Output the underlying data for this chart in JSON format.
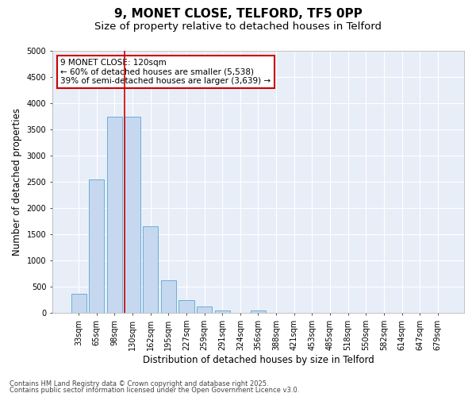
{
  "title1": "9, MONET CLOSE, TELFORD, TF5 0PP",
  "title2": "Size of property relative to detached houses in Telford",
  "xlabel": "Distribution of detached houses by size in Telford",
  "ylabel": "Number of detached properties",
  "categories": [
    "33sqm",
    "65sqm",
    "98sqm",
    "130sqm",
    "162sqm",
    "195sqm",
    "227sqm",
    "259sqm",
    "291sqm",
    "324sqm",
    "356sqm",
    "388sqm",
    "421sqm",
    "453sqm",
    "485sqm",
    "518sqm",
    "550sqm",
    "582sqm",
    "614sqm",
    "647sqm",
    "679sqm"
  ],
  "values": [
    370,
    2550,
    3750,
    3750,
    1650,
    625,
    250,
    120,
    50,
    0,
    50,
    0,
    0,
    0,
    0,
    0,
    0,
    0,
    0,
    0,
    0
  ],
  "bar_color": "#c5d8f0",
  "bar_edge_color": "#6aaed6",
  "vline_color": "#cc0000",
  "annotation_text": "9 MONET CLOSE: 120sqm\n← 60% of detached houses are smaller (5,538)\n39% of semi-detached houses are larger (3,639) →",
  "annotation_box_color": "#ffffff",
  "annotation_box_edge": "#cc0000",
  "ylim": [
    0,
    5000
  ],
  "yticks": [
    0,
    500,
    1000,
    1500,
    2000,
    2500,
    3000,
    3500,
    4000,
    4500,
    5000
  ],
  "footer1": "Contains HM Land Registry data © Crown copyright and database right 2025.",
  "footer2": "Contains public sector information licensed under the Open Government Licence v3.0.",
  "plot_bg_color": "#e8eef8",
  "fig_bg_color": "#ffffff",
  "grid_color": "#ffffff",
  "title_fontsize": 11,
  "subtitle_fontsize": 9.5,
  "tick_fontsize": 7,
  "label_fontsize": 8.5,
  "ann_fontsize": 7.5,
  "footer_fontsize": 6
}
